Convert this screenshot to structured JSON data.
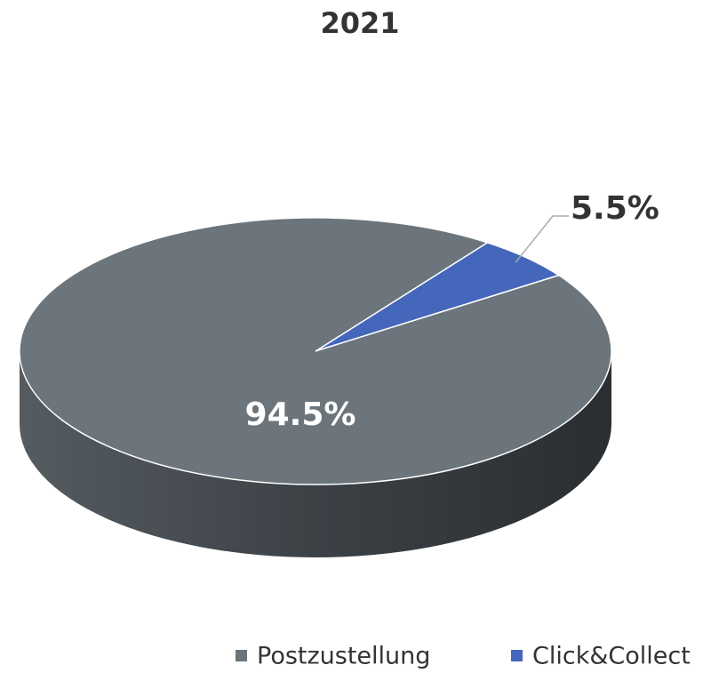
{
  "chart_data": {
    "type": "pie",
    "title": "2021",
    "categories": [
      "Postzustellung",
      "Click&Collect"
    ],
    "values": [
      94.5,
      5.5
    ],
    "value_labels": [
      "94.5%",
      "5.5%"
    ],
    "colors": [
      "#6b757b",
      "#4466bb"
    ],
    "legend": "bottom"
  }
}
